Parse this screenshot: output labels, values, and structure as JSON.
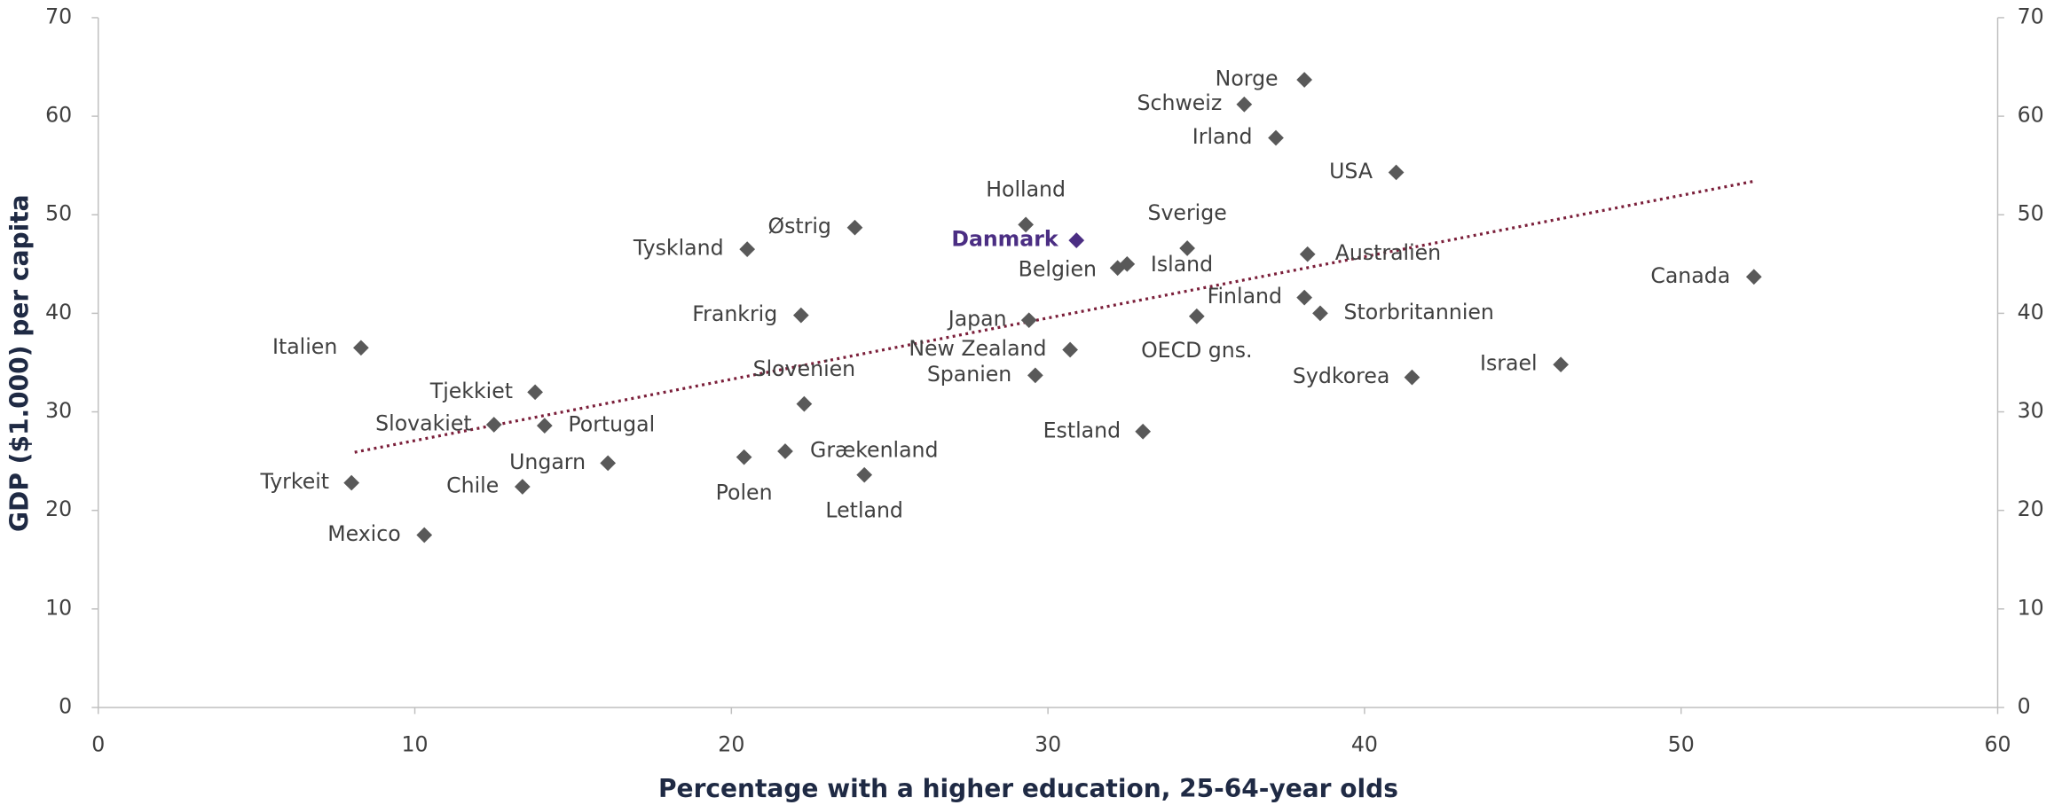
{
  "chart_data": {
    "type": "scatter",
    "x_label": "Percentage with a higher education, 25-64-year olds",
    "y_label": "GDP ($1.000) per capita",
    "xlim": [
      0,
      60
    ],
    "xticks": [
      0,
      10,
      20,
      30,
      40,
      50,
      60
    ],
    "ylim": [
      0,
      70
    ],
    "yticks": [
      0,
      10,
      20,
      30,
      40,
      50,
      60,
      70
    ],
    "right_axis": true,
    "color": "#595959",
    "points": [
      {
        "label": "Norge",
        "x": 38.1,
        "y": 63.7
      },
      {
        "label": "Schweiz",
        "x": 36.2,
        "y": 61.2
      },
      {
        "label": "Irland",
        "x": 37.2,
        "y": 57.8
      },
      {
        "label": "USA",
        "x": 41.0,
        "y": 54.3
      },
      {
        "label": "Holland",
        "x": 29.3,
        "y": 49.0
      },
      {
        "label": "Danmark",
        "x": 30.9,
        "y": 47.4,
        "color": "#4b2e83"
      },
      {
        "label": "Østrig",
        "x": 23.9,
        "y": 48.7
      },
      {
        "label": "Tyskland",
        "x": 20.5,
        "y": 46.5
      },
      {
        "label": "Sverige",
        "x": 34.4,
        "y": 46.6
      },
      {
        "label": "Belgien",
        "x": 32.2,
        "y": 44.6
      },
      {
        "label": "Island",
        "x": 32.5,
        "y": 45.0
      },
      {
        "label": "Australien",
        "x": 38.2,
        "y": 46.0
      },
      {
        "label": "Canada",
        "x": 52.3,
        "y": 43.7
      },
      {
        "label": "Finland",
        "x": 38.1,
        "y": 41.6
      },
      {
        "label": "Storbritannien",
        "x": 38.6,
        "y": 40.0
      },
      {
        "label": "Frankrig",
        "x": 22.2,
        "y": 39.8
      },
      {
        "label": "Japan",
        "x": 29.4,
        "y": 39.3
      },
      {
        "label": "OECD gns.",
        "x": 34.7,
        "y": 39.7
      },
      {
        "label": "Italien",
        "x": 8.3,
        "y": 36.5
      },
      {
        "label": "New Zealand",
        "x": 30.7,
        "y": 36.3
      },
      {
        "label": "Spanien",
        "x": 29.6,
        "y": 33.7
      },
      {
        "label": "Israel",
        "x": 46.2,
        "y": 34.8
      },
      {
        "label": "Sydkorea",
        "x": 41.5,
        "y": 33.5
      },
      {
        "label": "Slovenien",
        "x": 22.3,
        "y": 30.8
      },
      {
        "label": "Tjekkiet",
        "x": 13.8,
        "y": 32.0
      },
      {
        "label": "Slovakiet",
        "x": 12.5,
        "y": 28.7
      },
      {
        "label": "Portugal",
        "x": 14.1,
        "y": 28.6
      },
      {
        "label": "Estland",
        "x": 33.0,
        "y": 28.0
      },
      {
        "label": "Ungarn",
        "x": 16.1,
        "y": 24.8
      },
      {
        "label": "Polen",
        "x": 20.4,
        "y": 25.4
      },
      {
        "label": "Grækenland",
        "x": 21.7,
        "y": 26.0
      },
      {
        "label": "Letland",
        "x": 24.2,
        "y": 23.6
      },
      {
        "label": "Tyrkeit",
        "x": 8.0,
        "y": 22.8
      },
      {
        "label": "Chile",
        "x": 13.4,
        "y": 22.4
      },
      {
        "label": "Mexico",
        "x": 10.3,
        "y": 17.5
      }
    ],
    "trendline": {
      "x": [
        8.1,
        52.3
      ],
      "y": [
        25.9,
        53.4
      ],
      "color": "#7b1f3a"
    }
  }
}
